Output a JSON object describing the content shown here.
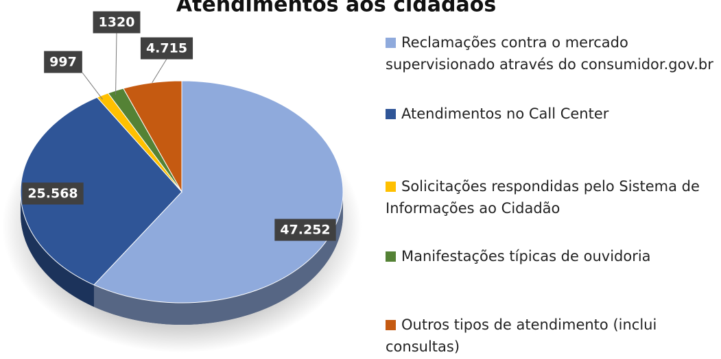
{
  "chart_data": {
    "type": "pie",
    "title": "Atendimentos aos cidadãos",
    "categories": [
      "Reclamações contra o mercado supervisionado através do consumidor.gov.br",
      "Atendimentos no Call Center",
      "Solicitações respondidas pelo Sistema de Informações ao Cidadão",
      "Manifestações típicas de ouvidoria",
      "Outros tipos de atendimento (inclui consultas)"
    ],
    "values": [
      47252,
      25568,
      997,
      1320,
      4715
    ],
    "value_labels": [
      "47.252",
      "25.568",
      "997",
      "1320",
      "4.715"
    ],
    "colors": [
      "#8faadc",
      "#2f5597",
      "#ffc000",
      "#548235",
      "#c55a11"
    ],
    "legend": "right"
  }
}
